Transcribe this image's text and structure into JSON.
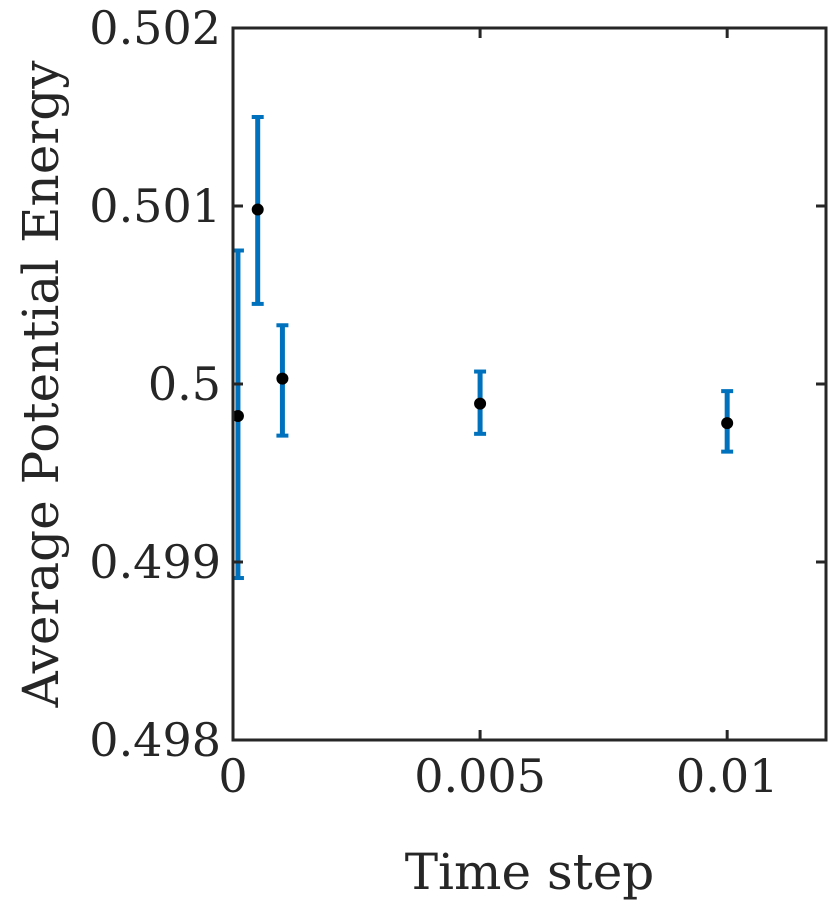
{
  "chart_data": {
    "type": "scatter",
    "xlabel": "Time step",
    "ylabel": "Average Potential Energy",
    "xlim": [
      0,
      0.012
    ],
    "ylim": [
      0.498,
      0.502
    ],
    "xticks": [
      0,
      0.005,
      0.01
    ],
    "xtick_labels": [
      "0",
      "0.005",
      "0.01"
    ],
    "yticks": [
      0.498,
      0.499,
      0.5,
      0.501,
      0.502
    ],
    "ytick_labels": [
      "0.498",
      "0.499",
      "0.5",
      "0.501",
      "0.502"
    ],
    "grid": false,
    "colors": {
      "errorbar": "#0072BD",
      "marker": "#000000",
      "axis": "#262626"
    },
    "series": [
      {
        "x": [
          0.0001,
          0.0005,
          0.001,
          0.005,
          0.01
        ],
        "y": [
          0.49982,
          0.50098,
          0.50003,
          0.49989,
          0.49978
        ],
        "lower": [
          0.49891,
          0.50045,
          0.49971,
          0.49972,
          0.49962
        ],
        "upper": [
          0.50075,
          0.5015,
          0.50033,
          0.50007,
          0.49996
        ]
      }
    ]
  }
}
